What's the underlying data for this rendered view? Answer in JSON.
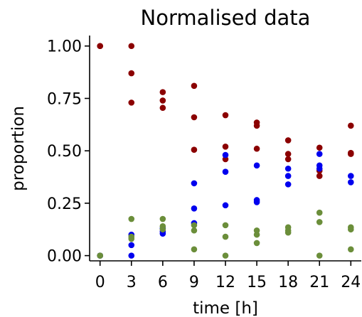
{
  "chart_data": {
    "type": "scatter",
    "title": "Normalised data",
    "xlabel": "time [h]",
    "ylabel": "proportion",
    "xticks": [
      0,
      3,
      6,
      9,
      12,
      15,
      18,
      21,
      24
    ],
    "yticks": [
      "0.00",
      "0.25",
      "0.50",
      "0.75",
      "1.00"
    ],
    "xlim": [
      -1,
      25
    ],
    "ylim": [
      -0.025,
      1.05
    ],
    "grid": false,
    "legend": "none",
    "series": [
      {
        "color": "#8b0000",
        "points": [
          [
            0,
            1.0
          ],
          [
            0,
            1.0
          ],
          [
            3,
            1.0
          ],
          [
            3,
            0.87
          ],
          [
            3,
            0.73
          ],
          [
            6,
            0.78
          ],
          [
            6,
            0.74
          ],
          [
            6,
            0.705
          ],
          [
            9,
            0.81
          ],
          [
            9,
            0.66
          ],
          [
            9,
            0.505
          ],
          [
            12,
            0.67
          ],
          [
            12,
            0.52
          ],
          [
            12,
            0.46
          ],
          [
            15,
            0.635
          ],
          [
            15,
            0.62
          ],
          [
            15,
            0.51
          ],
          [
            18,
            0.55
          ],
          [
            18,
            0.485
          ],
          [
            18,
            0.46
          ],
          [
            21,
            0.515
          ],
          [
            21,
            0.405
          ],
          [
            21,
            0.38
          ],
          [
            24,
            0.62
          ],
          [
            24,
            0.49
          ],
          [
            24,
            0.485
          ]
        ]
      },
      {
        "color": "#0000ee",
        "points": [
          [
            0,
            0.0
          ],
          [
            0,
            0.0
          ],
          [
            3,
            0.1
          ],
          [
            3,
            0.05
          ],
          [
            3,
            0.0
          ],
          [
            6,
            0.13
          ],
          [
            6,
            0.115
          ],
          [
            6,
            0.105
          ],
          [
            9,
            0.345
          ],
          [
            9,
            0.225
          ],
          [
            9,
            0.155
          ],
          [
            12,
            0.48
          ],
          [
            12,
            0.4
          ],
          [
            12,
            0.24
          ],
          [
            15,
            0.43
          ],
          [
            15,
            0.265
          ],
          [
            15,
            0.255
          ],
          [
            18,
            0.415
          ],
          [
            18,
            0.38
          ],
          [
            18,
            0.34
          ],
          [
            21,
            0.485
          ],
          [
            21,
            0.43
          ],
          [
            21,
            0.415
          ],
          [
            24,
            0.38
          ],
          [
            24,
            0.35
          ]
        ]
      },
      {
        "color": "#6b8e3a",
        "points": [
          [
            0,
            0.0
          ],
          [
            0,
            0.0
          ],
          [
            3,
            0.175
          ],
          [
            3,
            0.09
          ],
          [
            3,
            0.08
          ],
          [
            6,
            0.175
          ],
          [
            6,
            0.14
          ],
          [
            6,
            0.125
          ],
          [
            9,
            0.145
          ],
          [
            9,
            0.12
          ],
          [
            9,
            0.03
          ],
          [
            12,
            0.145
          ],
          [
            12,
            0.09
          ],
          [
            12,
            0.0
          ],
          [
            15,
            0.12
          ],
          [
            15,
            0.1
          ],
          [
            15,
            0.06
          ],
          [
            18,
            0.135
          ],
          [
            18,
            0.12
          ],
          [
            18,
            0.11
          ],
          [
            21,
            0.205
          ],
          [
            21,
            0.16
          ],
          [
            21,
            0.0
          ],
          [
            24,
            0.135
          ],
          [
            24,
            0.125
          ],
          [
            24,
            0.03
          ]
        ]
      }
    ]
  }
}
